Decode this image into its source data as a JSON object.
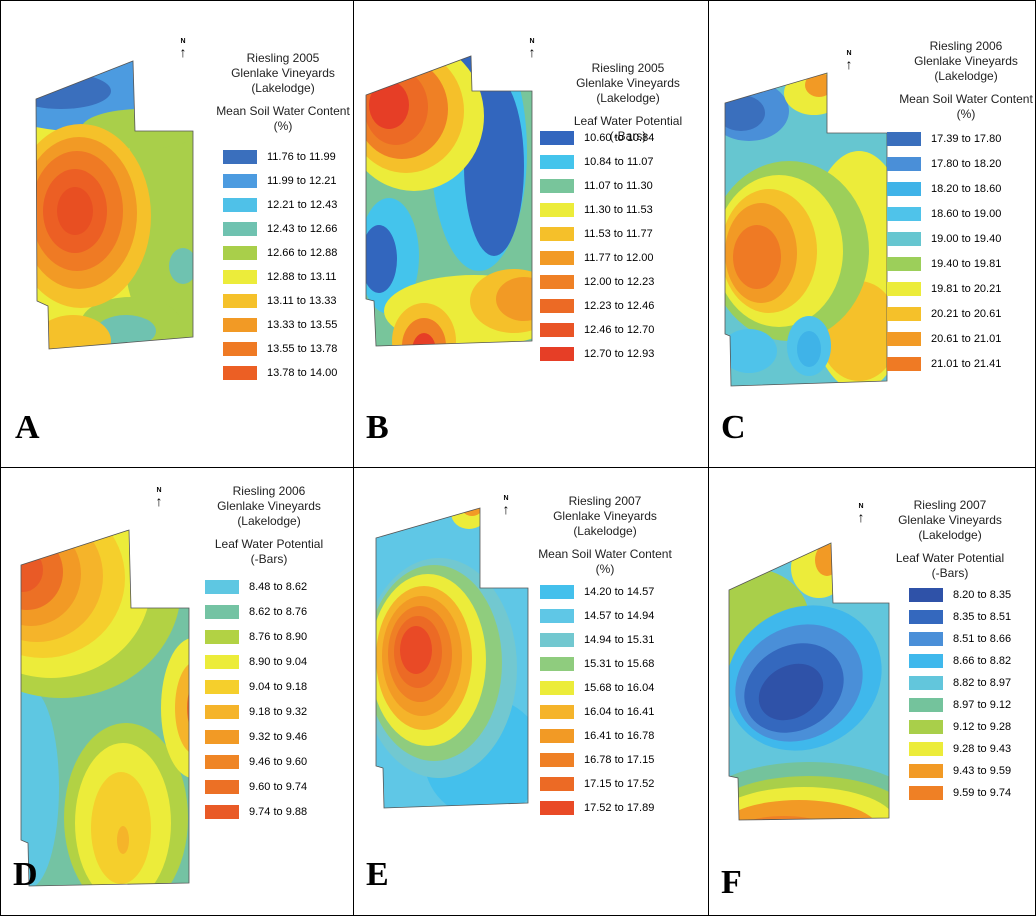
{
  "panels": [
    {
      "id": "A",
      "letter": "A",
      "north": "N",
      "title": [
        "Riesling 2005",
        "Glenlake Vineyards",
        "(Lakelodge)"
      ],
      "subtitle": [
        "Mean Soil Water Content",
        "(%)"
      ],
      "classes": [
        {
          "label": "11.76 to 11.99",
          "color": "#3a6fbd"
        },
        {
          "label": "11.99 to 12.21",
          "color": "#4c9be0"
        },
        {
          "label": "12.21 to 12.43",
          "color": "#4fc1e8"
        },
        {
          "label": "12.43 to 12.66",
          "color": "#6fc2b0"
        },
        {
          "label": "12.66 to 12.88",
          "color": "#a9cf4a"
        },
        {
          "label": "12.88 to 13.11",
          "color": "#ecec3a"
        },
        {
          "label": "13.11 to 13.33",
          "color": "#f5c12a"
        },
        {
          "label": "13.33 to 13.55",
          "color": "#f29a25"
        },
        {
          "label": "13.55 to 13.78",
          "color": "#ef7a24"
        },
        {
          "label": "13.78 to 14.00",
          "color": "#ec5f24"
        }
      ]
    },
    {
      "id": "B",
      "letter": "B",
      "north": "N",
      "title": [
        "Riesling 2005",
        "Glenlake Vineyards",
        "(Lakelodge)"
      ],
      "subtitle": [
        "Leaf Water Potential",
        "(-Bars)"
      ],
      "classes": [
        {
          "label": "10.60 to 10.84",
          "color": "#3266be"
        },
        {
          "label": "10.84 to 11.07",
          "color": "#44c4ec"
        },
        {
          "label": "11.07 to 11.30",
          "color": "#78c59b"
        },
        {
          "label": "11.30 to 11.53",
          "color": "#ecec3a"
        },
        {
          "label": "11.53 to 11.77",
          "color": "#f5c02a"
        },
        {
          "label": "11.77 to 12.00",
          "color": "#f29a25"
        },
        {
          "label": "12.00 to 12.23",
          "color": "#ef8025"
        },
        {
          "label": "12.23 to 12.46",
          "color": "#ec6a25"
        },
        {
          "label": "12.46 to 12.70",
          "color": "#e95426"
        },
        {
          "label": "12.70 to 12.93",
          "color": "#e63e26"
        }
      ]
    },
    {
      "id": "C",
      "letter": "C",
      "north": "N",
      "title": [
        "Riesling 2006",
        "Glenlake Vineyards",
        "(Lakelodge)"
      ],
      "subtitle": [
        "Mean Soil Water Content",
        "(%)"
      ],
      "classes": [
        {
          "label": "17.39 to 17.80",
          "color": "#3a6fbd"
        },
        {
          "label": "17.80 to 18.20",
          "color": "#4a8fd8"
        },
        {
          "label": "18.20 to 18.60",
          "color": "#3fb3e8"
        },
        {
          "label": "18.60 to 19.00",
          "color": "#4fc3ea"
        },
        {
          "label": "19.00 to 19.40",
          "color": "#66c6d0"
        },
        {
          "label": "19.40 to 19.81",
          "color": "#9ccf5a"
        },
        {
          "label": "19.81 to 20.21",
          "color": "#ecec3a"
        },
        {
          "label": "20.21 to 20.61",
          "color": "#f5c12a"
        },
        {
          "label": "20.61 to 21.01",
          "color": "#f29a25"
        },
        {
          "label": "21.01 to 21.41",
          "color": "#ef7a24"
        }
      ]
    },
    {
      "id": "D",
      "letter": "D",
      "north": "N",
      "title": [
        "Riesling 2006",
        "Glenlake Vineyards",
        "(Lakelodge)"
      ],
      "subtitle": [
        "Leaf Water Potential",
        "(-Bars)"
      ],
      "classes": [
        {
          "label": "8.48 to 8.62",
          "color": "#5ec7e2"
        },
        {
          "label": "8.62 to 8.76",
          "color": "#74c3a3"
        },
        {
          "label": "8.76 to 8.90",
          "color": "#b2d244"
        },
        {
          "label": "8.90 to 9.04",
          "color": "#ecec3a"
        },
        {
          "label": "9.04 to 9.18",
          "color": "#f5cf2c"
        },
        {
          "label": "9.18 to 9.32",
          "color": "#f5b42a"
        },
        {
          "label": "9.32 to 9.46",
          "color": "#f29a25"
        },
        {
          "label": "9.46 to 9.60",
          "color": "#ef8525"
        },
        {
          "label": "9.60 to 9.74",
          "color": "#ec7025"
        },
        {
          "label": "9.74 to 9.88",
          "color": "#e95a26"
        }
      ]
    },
    {
      "id": "E",
      "letter": "E",
      "north": "N",
      "title": [
        "Riesling 2007",
        "Glenlake Vineyards",
        "(Lakelodge)"
      ],
      "subtitle": [
        "Mean Soil Water Content",
        "(%)"
      ],
      "classes": [
        {
          "label": "14.20 to 14.57",
          "color": "#44c0ec"
        },
        {
          "label": "14.57 to 14.94",
          "color": "#5fc7e6"
        },
        {
          "label": "14.94 to 15.31",
          "color": "#72c8d0"
        },
        {
          "label": "15.31 to 15.68",
          "color": "#8fcc7e"
        },
        {
          "label": "15.68 to 16.04",
          "color": "#ecec3a"
        },
        {
          "label": "16.04 to 16.41",
          "color": "#f5b42a"
        },
        {
          "label": "16.41 to 16.78",
          "color": "#f29a25"
        },
        {
          "label": "16.78 to 17.15",
          "color": "#ef8025"
        },
        {
          "label": "17.15 to 17.52",
          "color": "#ec6a25"
        },
        {
          "label": "17.52 to 17.89",
          "color": "#e94a26"
        }
      ]
    },
    {
      "id": "F",
      "letter": "F",
      "north": "N",
      "title": [
        "Riesling 2007",
        "Glenlake Vineyards",
        "(Lakelodge)"
      ],
      "subtitle": [
        "Leaf Water Potential",
        "(-Bars)"
      ],
      "classes": [
        {
          "label": "8.20 to 8.35",
          "color": "#2f52a8"
        },
        {
          "label": "8.35 to 8.51",
          "color": "#3468be"
        },
        {
          "label": "8.51 to 8.66",
          "color": "#4a8fd8"
        },
        {
          "label": "8.66 to 8.82",
          "color": "#3fb8ec"
        },
        {
          "label": "8.82 to 8.97",
          "color": "#62c6dc"
        },
        {
          "label": "8.97 to 9.12",
          "color": "#74c39c"
        },
        {
          "label": "9.12 to 9.28",
          "color": "#a9cf4a"
        },
        {
          "label": "9.28 to 9.43",
          "color": "#ecec3a"
        },
        {
          "label": "9.43 to 9.59",
          "color": "#f29a25"
        },
        {
          "label": "9.59 to 9.74",
          "color": "#ef8025"
        }
      ]
    }
  ]
}
